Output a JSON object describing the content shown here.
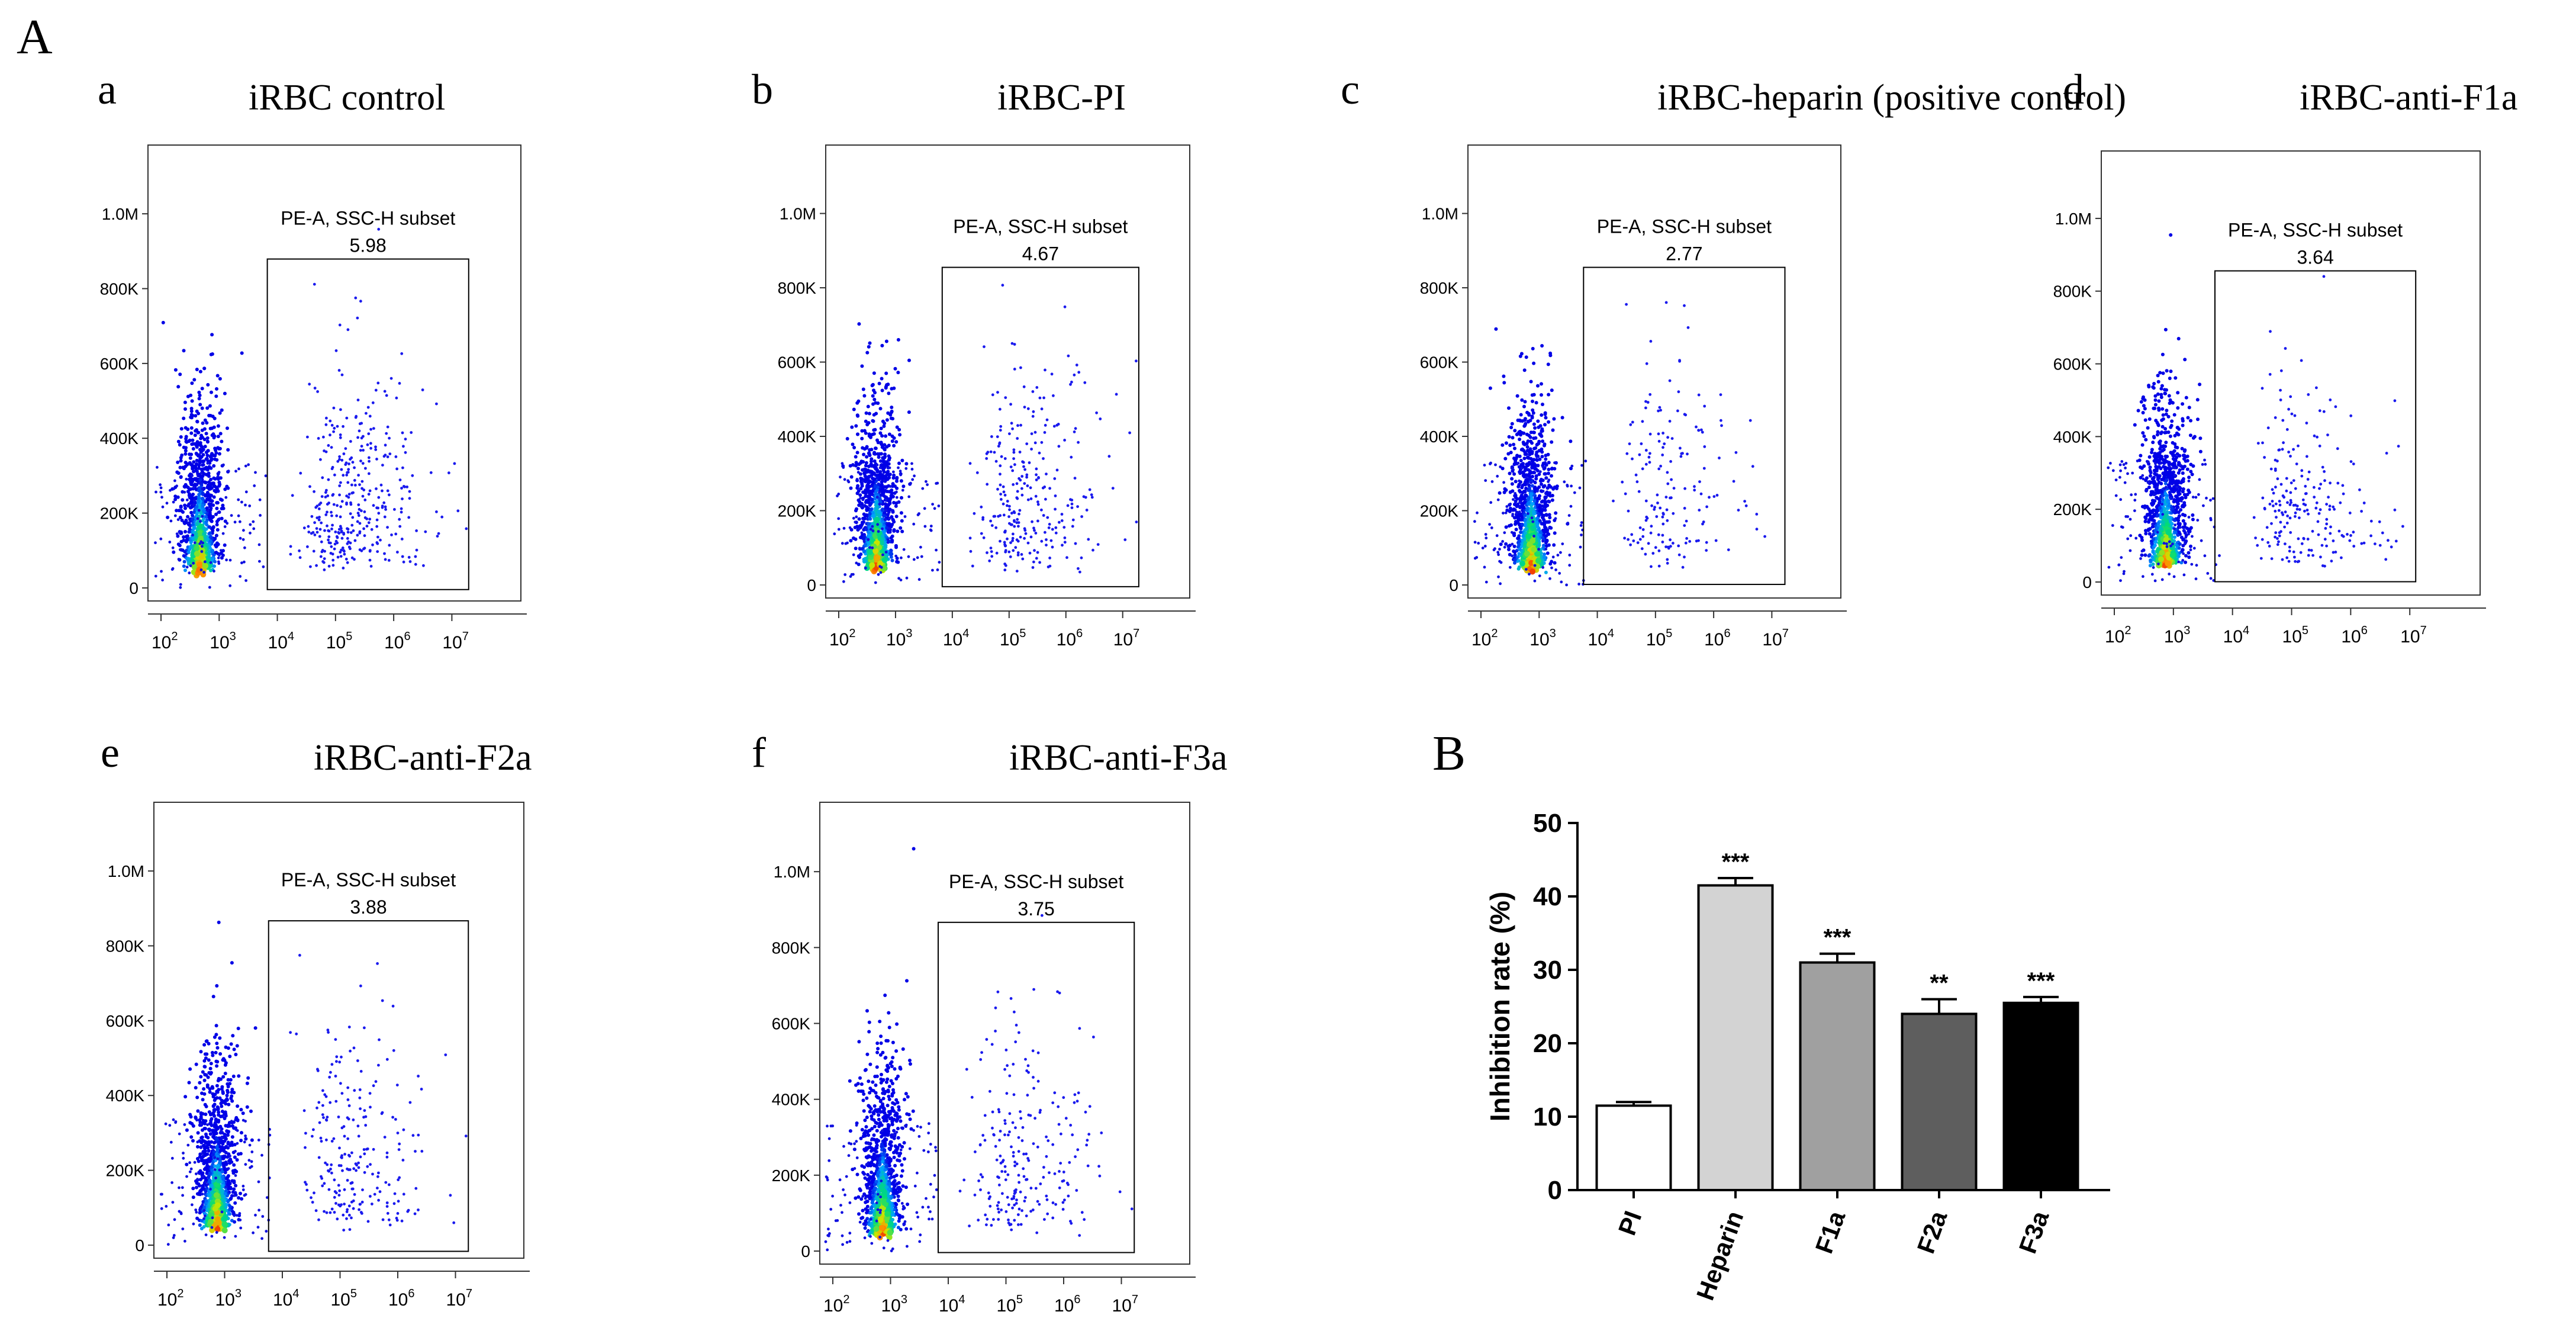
{
  "figure": {
    "panel_A_label": "A",
    "panel_B_label": "B"
  },
  "flow_panels": [
    {
      "letter": "a",
      "title": "iRBC  control",
      "gate_label": "PE-A, SSC-H subset",
      "gate_value": "5.98"
    },
    {
      "letter": "b",
      "title": "iRBC-PI",
      "gate_label": "PE-A, SSC-H subset",
      "gate_value": "4.67"
    },
    {
      "letter": "c",
      "title": "iRBC-heparin (positive  control)",
      "gate_label": "PE-A, SSC-H subset",
      "gate_value": "2.77"
    },
    {
      "letter": "d",
      "title": "iRBC-anti-F1a",
      "gate_label": "PE-A, SSC-H subset",
      "gate_value": "3.64"
    },
    {
      "letter": "e",
      "title": "iRBC-anti-F2a",
      "gate_label": "PE-A, SSC-H subset",
      "gate_value": "3.88"
    },
    {
      "letter": "f",
      "title": "iRBC-anti-F3a",
      "gate_label": "PE-A, SSC-H subset",
      "gate_value": "3.75"
    }
  ],
  "flow_axes": {
    "y_ticks": [
      "0",
      "200K",
      "400K",
      "600K",
      "800K",
      "1.0M"
    ],
    "x_tick_base": "10",
    "x_tick_exponents": [
      "2",
      "3",
      "4",
      "5",
      "6",
      "7"
    ]
  },
  "chart_data": [
    {
      "type": "bar",
      "panel": "B",
      "title": "",
      "xlabel": "",
      "ylabel": "Inhibition rate (%)",
      "ylim": [
        0,
        50
      ],
      "y_ticks": [
        "0",
        "10",
        "20",
        "30",
        "40",
        "50"
      ],
      "categories": [
        "PI",
        "Heparin",
        "F1a",
        "F2a",
        "F3a"
      ],
      "values": [
        11.5,
        41.5,
        31,
        24,
        25.5
      ],
      "errors": [
        0.5,
        1.0,
        1.2,
        2.0,
        0.8
      ],
      "significance": [
        "",
        "***",
        "***",
        "**",
        "***"
      ],
      "colors": [
        "#ffffff",
        "#d3d3d3",
        "#a0a0a0",
        "#5e5e5e",
        "#000000"
      ]
    }
  ]
}
